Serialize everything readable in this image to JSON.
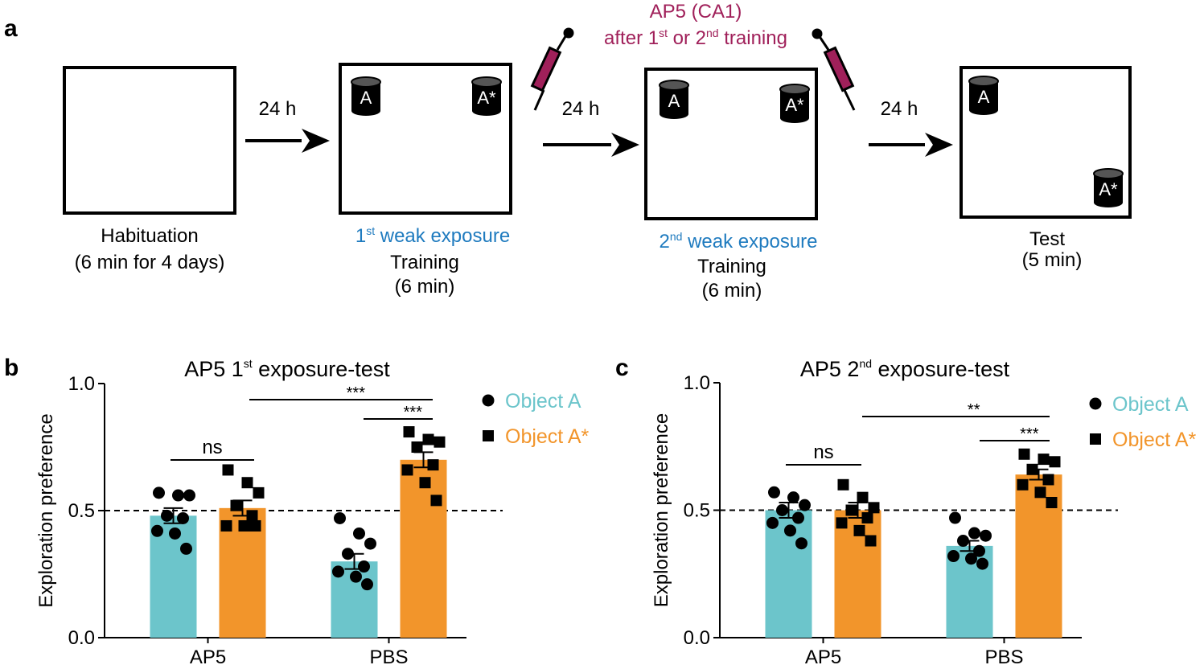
{
  "diagram": {
    "panel_label": "a",
    "arrows": [
      "24 h",
      "24 h",
      "24 h"
    ],
    "injection": {
      "line1": "AP5 (CA1)",
      "line2": {
        "main": "after 1",
        "sup": "st",
        "mid": " or 2",
        "sup2": "nd",
        "rest": " training"
      }
    },
    "stages": [
      {
        "lines": [
          "Habituation",
          "(6 min for 4 days)"
        ]
      },
      {
        "exposure": {
          "main": "1",
          "sup": "st",
          "rest": " weak exposure"
        },
        "lines": [
          "Training",
          "(6 min)"
        ],
        "objects": [
          "A",
          "A*"
        ]
      },
      {
        "exposure": {
          "main": "2",
          "sup": "nd",
          "rest": " weak exposure"
        },
        "lines": [
          "Training",
          "(6 min)"
        ],
        "objects": [
          "A",
          "A*"
        ]
      },
      {
        "lines": [
          "Test",
          "(5 min)"
        ],
        "objects": [
          "A",
          "A*"
        ]
      }
    ]
  },
  "chart_data": [
    {
      "panel_label": "b",
      "type": "bar",
      "title": {
        "main": "AP5 1",
        "sup": "st",
        "rest": " exposure-test"
      },
      "ylabel": "Exploration preference",
      "categories": [
        "AP5",
        "PBS"
      ],
      "ylim": [
        0,
        1
      ],
      "yticks": [
        {
          "value": 0,
          "label": "0.0"
        },
        {
          "value": 0.5,
          "label": "0.5"
        },
        {
          "value": 1,
          "label": "1.0"
        }
      ],
      "reference_line": 0.5,
      "series": [
        {
          "name": "Object A",
          "color": "#6cc5cb",
          "marker": "circle",
          "values": [
            0.48,
            0.3
          ],
          "errors": [
            0.03,
            0.03
          ],
          "points": [
            [
              0.57,
              0.56,
              0.56,
              0.48,
              0.47,
              0.42,
              0.41,
              0.35
            ],
            [
              0.47,
              0.41,
              0.37,
              0.33,
              0.28,
              0.26,
              0.24,
              0.21
            ]
          ]
        },
        {
          "name": "Object A*",
          "color": "#f2952b",
          "marker": "square",
          "values": [
            0.51,
            0.7
          ],
          "errors": [
            0.03,
            0.03
          ],
          "points": [
            [
              0.66,
              0.61,
              0.57,
              0.52,
              0.48,
              0.44,
              0.44,
              0.44
            ],
            [
              0.81,
              0.78,
              0.77,
              0.75,
              0.68,
              0.66,
              0.61,
              0.54
            ]
          ]
        }
      ],
      "annotations": [
        "ns",
        "***",
        "***"
      ]
    },
    {
      "panel_label": "c",
      "type": "bar",
      "title": {
        "main": "AP5 2",
        "sup": "nd",
        "rest": " exposure-test"
      },
      "ylabel": "Exploration preference",
      "categories": [
        "AP5",
        "PBS"
      ],
      "ylim": [
        0,
        1
      ],
      "yticks": [
        {
          "value": 0,
          "label": "0.0"
        },
        {
          "value": 0.5,
          "label": "0.5"
        },
        {
          "value": 1,
          "label": "1.0"
        }
      ],
      "reference_line": 0.5,
      "series": [
        {
          "name": "Object A",
          "color": "#6cc5cb",
          "marker": "circle",
          "values": [
            0.5,
            0.36
          ],
          "errors": [
            0.03,
            0.02
          ],
          "points": [
            [
              0.57,
              0.55,
              0.52,
              0.5,
              0.47,
              0.45,
              0.42,
              0.37
            ],
            [
              0.47,
              0.41,
              0.4,
              0.38,
              0.34,
              0.32,
              0.31,
              0.29
            ]
          ]
        },
        {
          "name": "Object A*",
          "color": "#f2952b",
          "marker": "square",
          "values": [
            0.5,
            0.64
          ],
          "errors": [
            0.03,
            0.02
          ],
          "points": [
            [
              0.6,
              0.55,
              0.51,
              0.5,
              0.47,
              0.45,
              0.42,
              0.38
            ],
            [
              0.72,
              0.7,
              0.69,
              0.66,
              0.62,
              0.6,
              0.57,
              0.53
            ]
          ]
        }
      ],
      "annotations": [
        "ns",
        "***",
        "**"
      ]
    }
  ]
}
